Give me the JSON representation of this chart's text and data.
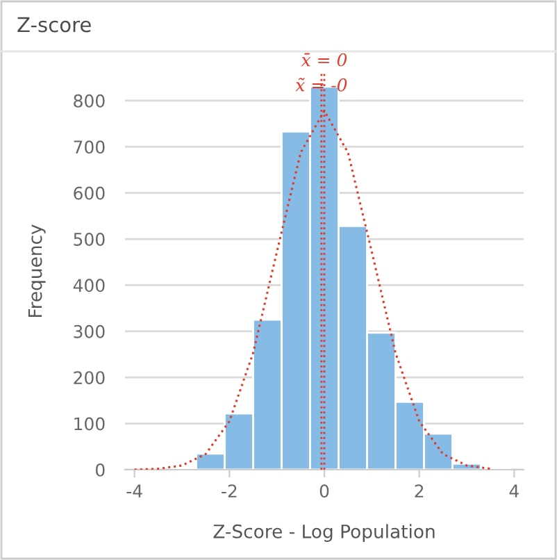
{
  "chart_data": {
    "type": "histogram",
    "title": "Z-score",
    "xlabel": "Z-Score - Log Population",
    "ylabel": "Frequency",
    "series": [
      {
        "color": "#85bbe5",
        "bins": [
          -3.3,
          -2.7,
          -2.1,
          -1.5,
          -0.9,
          -0.3,
          0.3,
          0.9,
          1.5,
          2.1,
          2.7,
          3.3,
          3.9
        ],
        "values": [
          2,
          35,
          122,
          325,
          733,
          830,
          528,
          297,
          147,
          78,
          13,
          3
        ]
      },
      {
        "type": "line",
        "color": "#e03a2a",
        "line_style": "dotted",
        "x": [
          -4,
          -3.5,
          -3,
          -2.5,
          -2,
          -1.5,
          -1,
          -0.5,
          0,
          0.5,
          1,
          1.5,
          2,
          2.5,
          3,
          3.5
        ],
        "values": [
          0,
          2,
          9,
          34,
          105,
          253,
          472,
          687,
          778,
          687,
          472,
          253,
          105,
          34,
          9,
          2
        ]
      }
    ],
    "ref_lines": [
      {
        "axis": "x",
        "value": 0,
        "label": "x̄ = 0",
        "color": "#e03a2a",
        "line_style": "dotted"
      },
      {
        "axis": "x",
        "value": -0.06,
        "label": "x̃ = -0",
        "color": "#e03a2a",
        "line_style": "dotted"
      }
    ],
    "xlim": [
      -4.2,
      4.2
    ],
    "xticks": [
      -4,
      -2,
      0,
      2,
      4
    ],
    "ylim": [
      0,
      860
    ],
    "yticks": [
      0,
      100,
      200,
      300,
      400,
      500,
      600,
      700,
      800
    ],
    "grid": "y"
  }
}
